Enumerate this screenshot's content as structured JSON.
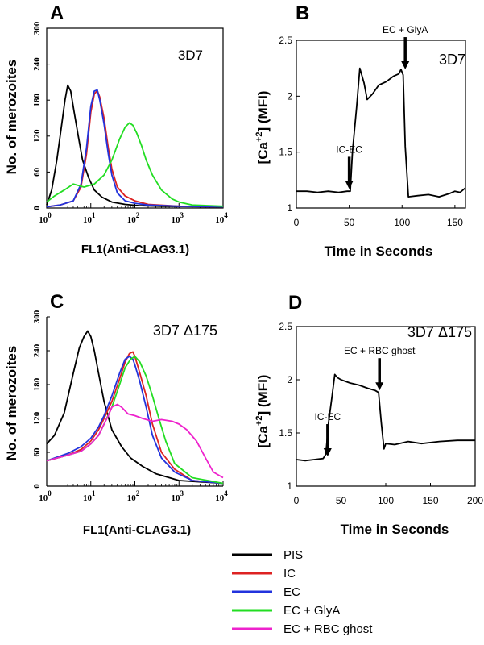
{
  "chart_data": [
    {
      "panel": "A",
      "type": "line",
      "strain": "3D7",
      "xlabel": "FL1(Anti-CLAG3.1)",
      "ylabel": "No. of  merozoites",
      "xscale": "log",
      "xlim": [
        1,
        10000
      ],
      "ylim": [
        0,
        300
      ],
      "xticks": [
        {
          "v": 1,
          "m": "0"
        },
        {
          "v": 10,
          "m": "1"
        },
        {
          "v": 100,
          "m": "2"
        },
        {
          "v": 1000,
          "m": "3"
        },
        {
          "v": 10000,
          "m": "4"
        }
      ],
      "yticks": [
        "0",
        "60",
        "120",
        "180",
        "240",
        "300"
      ],
      "series": [
        {
          "name": "PIS",
          "color": "#000000",
          "x": [
            1,
            1.3,
            1.7,
            2.2,
            2.6,
            3.0,
            3.5,
            4.2,
            5.2,
            6.5,
            9,
            12,
            18,
            30,
            60,
            120,
            400,
            10000
          ],
          "y": [
            5,
            30,
            80,
            140,
            180,
            205,
            195,
            160,
            120,
            80,
            50,
            30,
            18,
            10,
            6,
            4,
            3,
            2
          ]
        },
        {
          "name": "IC",
          "color": "#dd2222",
          "x": [
            1,
            2,
            4,
            6,
            8,
            10,
            12,
            14,
            16,
            20,
            25,
            30,
            40,
            60,
            100,
            200,
            1000,
            10000
          ],
          "y": [
            2,
            5,
            12,
            35,
            90,
            160,
            190,
            196,
            185,
            150,
            100,
            65,
            35,
            20,
            12,
            6,
            3,
            2
          ]
        },
        {
          "name": "EC",
          "color": "#2233dd",
          "x": [
            1,
            2,
            4,
            6,
            8,
            10,
            12,
            14,
            16,
            20,
            25,
            30,
            40,
            60,
            100,
            200,
            1000,
            10000
          ],
          "y": [
            2,
            5,
            12,
            40,
            100,
            170,
            195,
            197,
            180,
            140,
            90,
            55,
            25,
            12,
            8,
            5,
            3,
            2
          ]
        },
        {
          "name": "EC + GlyA",
          "color": "#22dd22",
          "x": [
            1,
            1.5,
            2.5,
            4,
            7,
            12,
            20,
            30,
            45,
            60,
            75,
            90,
            110,
            140,
            180,
            250,
            400,
            700,
            1000,
            2000,
            10000
          ],
          "y": [
            10,
            20,
            30,
            40,
            35,
            40,
            55,
            80,
            115,
            135,
            142,
            138,
            125,
            105,
            80,
            55,
            30,
            15,
            10,
            5,
            3
          ]
        }
      ]
    },
    {
      "panel": "B",
      "type": "line",
      "strain": "3D7",
      "xlabel": "Time in Seconds",
      "ylabel": "[Ca+2] (MFI)",
      "xlim": [
        0,
        160
      ],
      "ylim": [
        1,
        2.5
      ],
      "xticks": [
        "0",
        "50",
        "100",
        "150"
      ],
      "yticks": [
        "1",
        "1.5",
        "2",
        "2.5"
      ],
      "annotations": [
        {
          "text": "IC-EC",
          "x": 50,
          "y": 1.17
        },
        {
          "text": "EC + GlyA",
          "x": 103,
          "y": 2.24
        }
      ],
      "series": [
        {
          "name": "",
          "color": "#000000",
          "x": [
            0,
            10,
            20,
            30,
            40,
            48,
            51,
            53,
            57,
            60,
            64,
            67,
            72,
            78,
            85,
            92,
            97,
            99,
            101,
            103,
            106,
            115,
            125,
            135,
            145,
            150,
            155,
            160
          ],
          "y": [
            1.15,
            1.15,
            1.14,
            1.15,
            1.14,
            1.15,
            1.15,
            1.5,
            1.9,
            2.25,
            2.12,
            1.97,
            2.02,
            2.1,
            2.13,
            2.18,
            2.2,
            2.24,
            2.19,
            1.55,
            1.1,
            1.11,
            1.12,
            1.1,
            1.13,
            1.15,
            1.14,
            1.18
          ]
        }
      ]
    },
    {
      "panel": "C",
      "type": "line",
      "strain": "3D7 Δ175",
      "xlabel": "FL1(Anti-CLAG3.1)",
      "ylabel": "No. of  merozoites",
      "xscale": "log",
      "xlim": [
        1,
        10000
      ],
      "ylim": [
        0,
        300
      ],
      "xticks": [
        {
          "v": 1,
          "m": "0"
        },
        {
          "v": 10,
          "m": "1"
        },
        {
          "v": 100,
          "m": "2"
        },
        {
          "v": 1000,
          "m": "3"
        },
        {
          "v": 10000,
          "m": "4"
        }
      ],
      "yticks": [
        "0",
        "60",
        "120",
        "180",
        "240",
        "300"
      ],
      "series": [
        {
          "name": "PIS",
          "color": "#000000",
          "x": [
            1,
            1.5,
            2.5,
            4,
            5.5,
            7,
            8.5,
            10,
            12,
            15,
            20,
            30,
            50,
            80,
            150,
            300,
            1000,
            10000
          ],
          "y": [
            75,
            90,
            130,
            200,
            245,
            265,
            275,
            265,
            240,
            200,
            150,
            100,
            70,
            50,
            35,
            22,
            10,
            5
          ]
        },
        {
          "name": "IC",
          "color": "#dd2222",
          "x": [
            1,
            3,
            6,
            10,
            15,
            20,
            30,
            45,
            60,
            75,
            90,
            100,
            130,
            180,
            250,
            400,
            800,
            2000,
            10000
          ],
          "y": [
            45,
            55,
            65,
            80,
            100,
            120,
            150,
            190,
            220,
            235,
            238,
            230,
            200,
            160,
            110,
            60,
            30,
            10,
            5
          ]
        },
        {
          "name": "EC",
          "color": "#2233dd",
          "x": [
            1,
            3,
            6,
            10,
            15,
            20,
            30,
            45,
            60,
            75,
            90,
            100,
            130,
            180,
            250,
            400,
            800,
            2000,
            10000
          ],
          "y": [
            45,
            58,
            70,
            85,
            105,
            125,
            160,
            200,
            225,
            230,
            225,
            215,
            185,
            140,
            90,
            50,
            25,
            10,
            5
          ]
        },
        {
          "name": "EC + GlyA",
          "color": "#22dd22",
          "x": [
            1,
            3,
            6,
            10,
            15,
            20,
            30,
            45,
            60,
            80,
            100,
            130,
            180,
            250,
            350,
            500,
            800,
            2000,
            10000
          ],
          "y": [
            45,
            55,
            62,
            75,
            90,
            110,
            140,
            180,
            210,
            225,
            230,
            220,
            195,
            160,
            120,
            80,
            40,
            15,
            5
          ]
        },
        {
          "name": "EC + RBC ghost",
          "color": "#ee22cc",
          "x": [
            1,
            3,
            6,
            10,
            15,
            20,
            25,
            30,
            40,
            50,
            70,
            100,
            150,
            250,
            400,
            700,
            1000,
            1500,
            2500,
            4000,
            6000,
            10000
          ],
          "y": [
            45,
            55,
            62,
            75,
            90,
            110,
            125,
            140,
            145,
            140,
            128,
            125,
            120,
            115,
            118,
            115,
            110,
            100,
            80,
            50,
            25,
            15
          ]
        }
      ]
    },
    {
      "panel": "D",
      "type": "line",
      "strain": "3D7 Δ175",
      "xlabel": "Time in Seconds",
      "ylabel": "[Ca+2] (MFI)",
      "xlim": [
        0,
        200
      ],
      "ylim": [
        1,
        2.5
      ],
      "xticks": [
        "0",
        "50",
        "100",
        "150",
        "200"
      ],
      "yticks": [
        "1",
        "1.5",
        "2",
        "2.5"
      ],
      "annotations": [
        {
          "text": "IC-EC",
          "x": 35,
          "y": 1.28
        },
        {
          "text": "EC + RBC ghost",
          "x": 93,
          "y": 1.9
        }
      ],
      "series": [
        {
          "name": "",
          "color": "#000000",
          "x": [
            0,
            10,
            20,
            30,
            33,
            36,
            40,
            43,
            46,
            50,
            60,
            70,
            80,
            88,
            92,
            95,
            98,
            100,
            110,
            125,
            140,
            160,
            180,
            200
          ],
          "y": [
            1.25,
            1.24,
            1.25,
            1.26,
            1.3,
            1.6,
            1.85,
            2.05,
            2.02,
            2.0,
            1.97,
            1.95,
            1.92,
            1.9,
            1.88,
            1.6,
            1.35,
            1.4,
            1.39,
            1.42,
            1.4,
            1.42,
            1.43,
            1.43
          ]
        }
      ]
    }
  ],
  "legend": [
    {
      "label": "PIS",
      "color": "#000000"
    },
    {
      "label": "IC",
      "color": "#dd2222"
    },
    {
      "label": "EC",
      "color": "#2233dd"
    },
    {
      "label": "EC + GlyA",
      "color": "#22dd22"
    },
    {
      "label": "EC + RBC ghost",
      "color": "#ee22cc"
    }
  ]
}
